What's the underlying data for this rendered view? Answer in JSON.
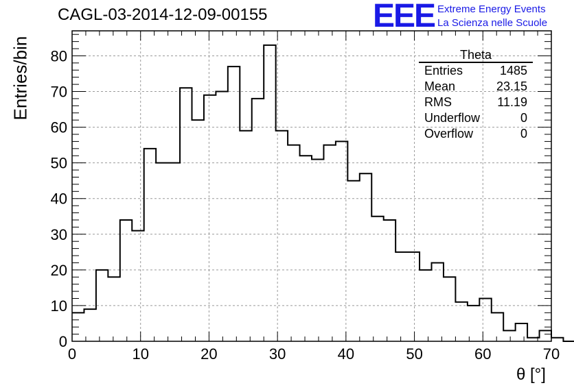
{
  "chart_data": {
    "type": "histogram",
    "title": "CAGL-03-2014-12-09-00155",
    "xlabel": "θ [°]",
    "ylabel": "Entries/bin",
    "xlim": [
      0,
      70
    ],
    "ylim": [
      0,
      87
    ],
    "bin_width": 1.75,
    "x_ticks": [
      0,
      10,
      20,
      30,
      40,
      50,
      60,
      70
    ],
    "y_ticks": [
      0,
      10,
      20,
      30,
      40,
      50,
      60,
      70,
      80
    ],
    "grid": true,
    "values": [
      8,
      9,
      20,
      18,
      34,
      31,
      54,
      50,
      50,
      71,
      62,
      69,
      70,
      77,
      59,
      68,
      83,
      59,
      55,
      52,
      51,
      55,
      56,
      45,
      47,
      35,
      34,
      25,
      25,
      20,
      22,
      18,
      11,
      10,
      12,
      8,
      3,
      5,
      1,
      3,
      1,
      0,
      0,
      0,
      0,
      0,
      0,
      0,
      0,
      0
    ],
    "stats": {
      "name": "Theta",
      "entries_label": "Entries",
      "entries": "1485",
      "mean_label": "Mean",
      "mean": "23.15",
      "rms_label": "RMS",
      "rms": "11.19",
      "underflow_label": "Underflow",
      "underflow": "0",
      "overflow_label": "Overflow",
      "overflow": "0"
    }
  },
  "logo": {
    "mark": "EEE",
    "line1": "Extreme Energy Events",
    "line2": "La Scienza nelle Scuole"
  }
}
